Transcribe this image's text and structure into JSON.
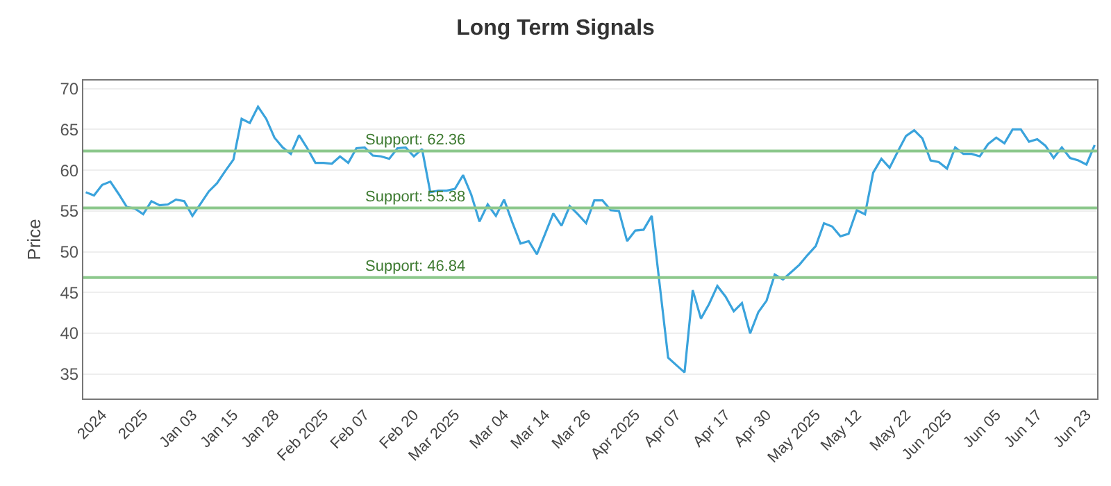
{
  "chart_data": {
    "type": "line",
    "title": "Long Term Signals",
    "ylabel": "Price",
    "categories": [
      null,
      null,
      "2024",
      null,
      null,
      null,
      null,
      "2025",
      null,
      null,
      null,
      null,
      null,
      "Jan 03",
      null,
      null,
      null,
      null,
      "Jan 15",
      null,
      null,
      null,
      null,
      "Jan 28",
      null,
      null,
      null,
      null,
      null,
      "Feb 2025",
      null,
      null,
      null,
      null,
      "Feb 07",
      null,
      null,
      null,
      null,
      null,
      "Feb 20",
      null,
      null,
      null,
      null,
      "Mar 2025",
      null,
      null,
      null,
      null,
      null,
      "Mar 04",
      null,
      null,
      null,
      null,
      "Mar 14",
      null,
      null,
      null,
      null,
      "Mar 26",
      null,
      null,
      null,
      null,
      null,
      "Apr 2025",
      null,
      null,
      null,
      null,
      "Apr 07",
      null,
      null,
      null,
      null,
      null,
      "Apr 17",
      null,
      null,
      null,
      null,
      "Apr 30",
      null,
      null,
      null,
      null,
      null,
      "May 2025",
      null,
      null,
      null,
      null,
      "May 12",
      null,
      null,
      null,
      null,
      null,
      "May 22",
      null,
      null,
      null,
      null,
      "Jun 2025",
      null,
      null,
      null,
      null,
      null,
      "Jun 05",
      null,
      null,
      null,
      null,
      "Jun 17",
      null,
      null,
      null,
      null,
      null,
      "Jun 23",
      null
    ],
    "series": [
      {
        "color": "#3aa3dc",
        "values": [
          57.3,
          56.9,
          58.2,
          58.6,
          57.1,
          55.5,
          55.3,
          54.6,
          56.2,
          55.7,
          55.8,
          56.4,
          56.2,
          54.4,
          55.9,
          57.4,
          58.4,
          59.9,
          61.3,
          66.3,
          65.8,
          67.8,
          66.3,
          64.0,
          62.8,
          62.0,
          64.3,
          62.7,
          60.9,
          60.9,
          60.8,
          61.7,
          60.9,
          62.7,
          62.8,
          61.8,
          61.7,
          61.4,
          62.7,
          62.8,
          61.7,
          62.6,
          57.3,
          57.5,
          57.5,
          57.7,
          59.4,
          57.0,
          53.7,
          55.8,
          54.4,
          56.4,
          53.6,
          51.0,
          51.3,
          49.7,
          52.2,
          54.7,
          53.2,
          55.6,
          54.6,
          53.5,
          56.3,
          56.3,
          55.1,
          55.0,
          51.3,
          52.6,
          52.7,
          54.4,
          45.7,
          37.0,
          36.1,
          35.2,
          45.3,
          41.8,
          43.6,
          45.8,
          44.5,
          42.7,
          43.7,
          40.0,
          42.6,
          44.0,
          47.2,
          46.6,
          47.5,
          48.4,
          49.6,
          50.7,
          53.5,
          53.1,
          51.9,
          52.2,
          55.1,
          54.6,
          59.7,
          61.4,
          60.3,
          62.3,
          64.2,
          64.9,
          63.9,
          61.2,
          61.0,
          60.2,
          62.8,
          62.0,
          62.0,
          61.7,
          63.2,
          64.0,
          63.3,
          65.0,
          65.0,
          63.5,
          63.8,
          63.0,
          61.5,
          62.8,
          61.5,
          61.2,
          60.7,
          63.1
        ]
      }
    ],
    "ylim": [
      32,
      71
    ],
    "yticks": [
      35,
      40,
      45,
      50,
      55,
      60,
      65,
      70
    ],
    "ref_lines": [
      {
        "axis": "y",
        "value": 62.36,
        "label": "Support: 62.36",
        "color": "#8cc88c"
      },
      {
        "axis": "y",
        "value": 55.38,
        "label": "Support: 55.38",
        "color": "#8cc88c"
      },
      {
        "axis": "y",
        "value": 46.84,
        "label": "Support: 46.84",
        "color": "#8cc88c"
      }
    ],
    "grid": "y",
    "marker": "none",
    "line_style": "solid"
  }
}
